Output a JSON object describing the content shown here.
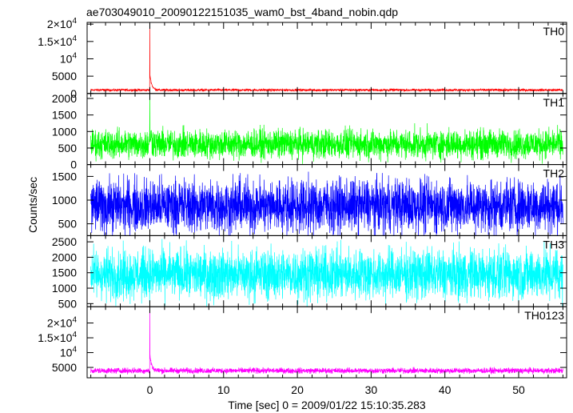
{
  "chart_data": {
    "type": "line",
    "title": "ae703049010_20090122151035_wam0_bst_4band_nobin.qdp",
    "xlabel": "Time [sec] 0 = 2009/01/22 15:10:35.283",
    "ylabel": "Counts/sec",
    "xlim": [
      -8.5,
      56.5
    ],
    "x_ticks": [
      0,
      10,
      20,
      30,
      40,
      50
    ],
    "x_tick_labels": [
      "0",
      "10",
      "20",
      "30",
      "40",
      "50"
    ],
    "grid": false,
    "panels": [
      {
        "name": "TH0",
        "color": "#ff0000",
        "ylim": [
          0,
          20500
        ],
        "y_ticks": [
          0,
          5000,
          10000,
          15000,
          20000
        ],
        "y_tick_labels": [
          {
            "base": "0"
          },
          {
            "base": "5000"
          },
          {
            "base": "10",
            "sup": "4"
          },
          {
            "base": "1.5×10",
            "sup": "4"
          },
          {
            "base": "2×10",
            "sup": "4"
          }
        ],
        "baseline": 1000,
        "noise": 550,
        "x_start": -8,
        "x_end": 56,
        "spike": {
          "x": 0,
          "peak": 20000
        }
      },
      {
        "name": "TH1",
        "color": "#00ff00",
        "ylim": [
          0,
          2150
        ],
        "y_ticks": [
          0,
          500,
          1000,
          1500,
          2000
        ],
        "y_tick_labels": [
          {
            "base": "0"
          },
          {
            "base": "500"
          },
          {
            "base": "1000"
          },
          {
            "base": "1500"
          },
          {
            "base": "2000"
          }
        ],
        "baseline": 620,
        "noise": 700,
        "x_start": -8,
        "x_end": 56,
        "spike": {
          "x": 0,
          "peak": 2150
        }
      },
      {
        "name": "TH2",
        "color": "#0000ff",
        "ylim": [
          250,
          1750
        ],
        "y_ticks": [
          500,
          1000,
          1500
        ],
        "y_tick_labels": [
          {
            "base": "500"
          },
          {
            "base": "1000"
          },
          {
            "base": "1500"
          }
        ],
        "baseline": 880,
        "noise": 900,
        "x_start": -8,
        "x_end": 56
      },
      {
        "name": "TH3",
        "color": "#00ffff",
        "ylim": [
          400,
          2700
        ],
        "y_ticks": [
          500,
          1000,
          1500,
          2000,
          2500
        ],
        "y_tick_labels": [
          {
            "base": "500"
          },
          {
            "base": "1000"
          },
          {
            "base": "1500"
          },
          {
            "base": "2000"
          },
          {
            "base": "2500"
          }
        ],
        "baseline": 1450,
        "noise": 1300,
        "x_start": -8,
        "x_end": 56
      },
      {
        "name": "TH0123",
        "color": "#ff00ff",
        "ylim": [
          1500,
          25500
        ],
        "y_ticks": [
          5000,
          10000,
          15000,
          20000
        ],
        "y_tick_labels": [
          {
            "base": "5000"
          },
          {
            "base": "10",
            "sup": "4"
          },
          {
            "base": "1.5×10",
            "sup": "4"
          },
          {
            "base": "2×10",
            "sup": "4"
          }
        ],
        "baseline": 3900,
        "noise": 1500,
        "x_start": -8,
        "x_end": 56,
        "spike": {
          "x": 0,
          "peak": 25500
        }
      }
    ]
  }
}
